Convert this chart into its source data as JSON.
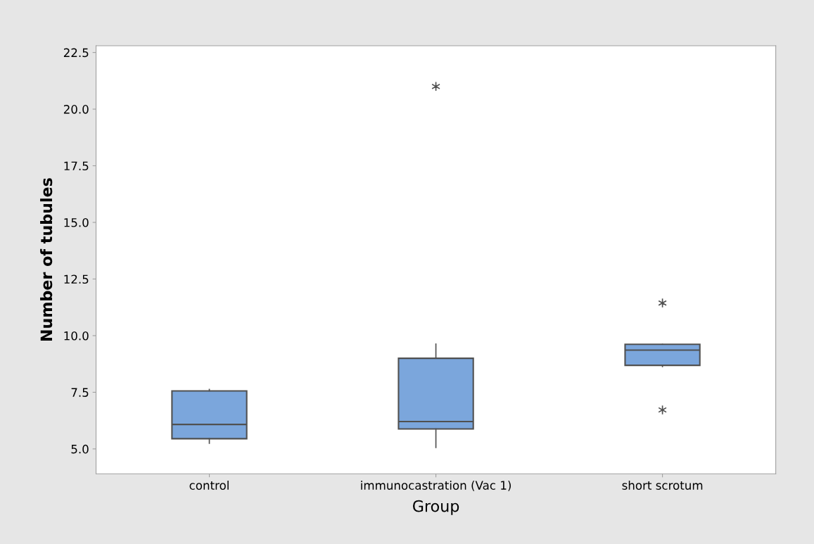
{
  "chart_data": {
    "type": "box",
    "xlabel": "Group",
    "ylabel": "Number of tubules",
    "categories": [
      "control",
      "immunocastration (Vac 1)",
      "short scrotum"
    ],
    "boxes": [
      {
        "low": 5.25,
        "q1": 5.45,
        "median": 6.08,
        "q3": 7.56,
        "high": 7.63
      },
      {
        "low": 5.06,
        "q1": 5.88,
        "median": 6.21,
        "q3": 9.0,
        "high": 9.63,
        "outliers": [
          21.0
        ]
      },
      {
        "low": 8.63,
        "q1": 8.69,
        "median": 9.36,
        "q3": 9.62,
        "high": 9.62,
        "outliers": [
          11.44,
          6.72
        ]
      }
    ],
    "color": "#7ba6dc",
    "ylim": [
      3.9,
      22.8
    ],
    "yticks": [
      {
        "value": 5,
        "label": "5.0"
      },
      {
        "value": 7.5,
        "label": "7.5"
      },
      {
        "value": 10,
        "label": "10.0"
      },
      {
        "value": 12.5,
        "label": "12.5"
      },
      {
        "value": 15,
        "label": "15.0"
      },
      {
        "value": 17.5,
        "label": "17.5"
      },
      {
        "value": 20,
        "label": "20.0"
      },
      {
        "value": 22.5,
        "label": "22.5"
      }
    ],
    "grid": false,
    "legend": false
  }
}
